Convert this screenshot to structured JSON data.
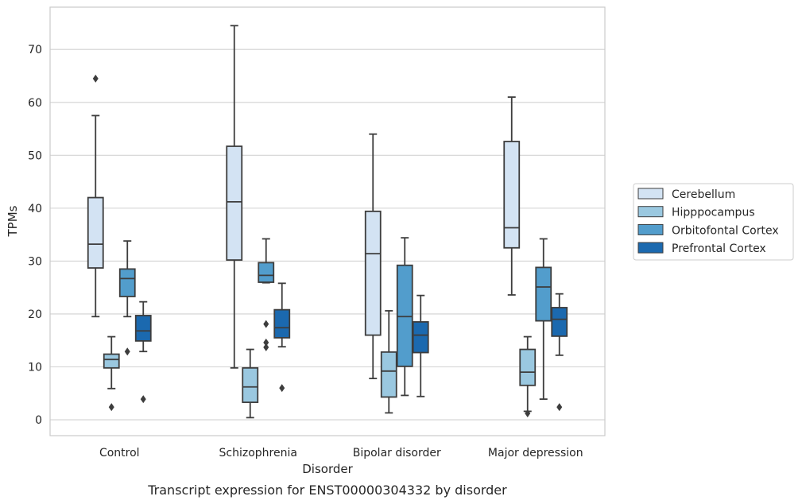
{
  "caption": "Transcript expression for ENST00000304332 by disorder",
  "chart_data": {
    "type": "box",
    "xlabel": "Disorder",
    "ylabel": "TPMs",
    "ylim": [
      -3,
      78
    ],
    "yticks": [
      0,
      10,
      20,
      30,
      40,
      50,
      60,
      70
    ],
    "grid": "horizontal",
    "legend_position": "right",
    "categories": [
      "Control",
      "Schizophrenia",
      "Bipolar disorder",
      "Major depression"
    ],
    "series": [
      {
        "name": "Cerebellum",
        "color": "#d3e3f3",
        "boxes": [
          {
            "whisker_low": 19.5,
            "q1": 28.7,
            "median": 33.2,
            "q3": 42.0,
            "whisker_high": 57.5,
            "outliers": [
              64.5
            ]
          },
          {
            "whisker_low": 9.8,
            "q1": 30.2,
            "median": 41.2,
            "q3": 51.7,
            "whisker_high": 74.5,
            "outliers": []
          },
          {
            "whisker_low": 7.8,
            "q1": 16.0,
            "median": 31.4,
            "q3": 39.4,
            "whisker_high": 54.0,
            "outliers": []
          },
          {
            "whisker_low": 23.6,
            "q1": 32.5,
            "median": 36.3,
            "q3": 52.6,
            "whisker_high": 61.0,
            "outliers": []
          }
        ]
      },
      {
        "name": "Hipppocampus",
        "color": "#9ac8e0",
        "boxes": [
          {
            "whisker_low": 5.9,
            "q1": 9.8,
            "median": 11.4,
            "q3": 12.4,
            "whisker_high": 15.7,
            "outliers": [
              2.4
            ]
          },
          {
            "whisker_low": 0.4,
            "q1": 3.3,
            "median": 6.2,
            "q3": 9.8,
            "whisker_high": 13.3,
            "outliers": []
          },
          {
            "whisker_low": 1.3,
            "q1": 4.3,
            "median": 9.2,
            "q3": 12.8,
            "whisker_high": 20.6,
            "outliers": []
          },
          {
            "whisker_low": 1.6,
            "q1": 6.5,
            "median": 9.0,
            "q3": 13.3,
            "whisker_high": 15.7,
            "outliers": [
              1.2
            ]
          }
        ]
      },
      {
        "name": "Orbitofontal Cortex",
        "color": "#529dcc",
        "boxes": [
          {
            "whisker_low": 19.5,
            "q1": 23.3,
            "median": 26.7,
            "q3": 28.5,
            "whisker_high": 33.8,
            "outliers": [
              12.9
            ]
          },
          {
            "whisker_low": 25.9,
            "q1": 26.0,
            "median": 27.3,
            "q3": 29.7,
            "whisker_high": 34.2,
            "outliers": [
              18.1,
              14.6,
              13.7
            ]
          },
          {
            "whisker_low": 4.6,
            "q1": 10.1,
            "median": 19.5,
            "q3": 29.2,
            "whisker_high": 34.4,
            "outliers": []
          },
          {
            "whisker_low": 3.9,
            "q1": 18.7,
            "median": 25.1,
            "q3": 28.8,
            "whisker_high": 34.2,
            "outliers": []
          }
        ]
      },
      {
        "name": "Prefrontal Cortex",
        "color": "#1b69af",
        "boxes": [
          {
            "whisker_low": 12.9,
            "q1": 14.9,
            "median": 16.8,
            "q3": 19.7,
            "whisker_high": 22.3,
            "outliers": [
              3.9
            ]
          },
          {
            "whisker_low": 13.8,
            "q1": 15.5,
            "median": 17.4,
            "q3": 20.8,
            "whisker_high": 25.8,
            "outliers": [
              6.0
            ]
          },
          {
            "whisker_low": 4.4,
            "q1": 12.7,
            "median": 16.0,
            "q3": 18.5,
            "whisker_high": 23.5,
            "outliers": []
          },
          {
            "whisker_low": 12.2,
            "q1": 15.8,
            "median": 19.0,
            "q3": 21.2,
            "whisker_high": 23.8,
            "outliers": [
              2.4
            ]
          }
        ]
      }
    ]
  },
  "colors": {
    "grid": "#d2d2d2",
    "axes_edge": "#cccccc",
    "line": "#3d3d3d",
    "text": "#262626"
  }
}
